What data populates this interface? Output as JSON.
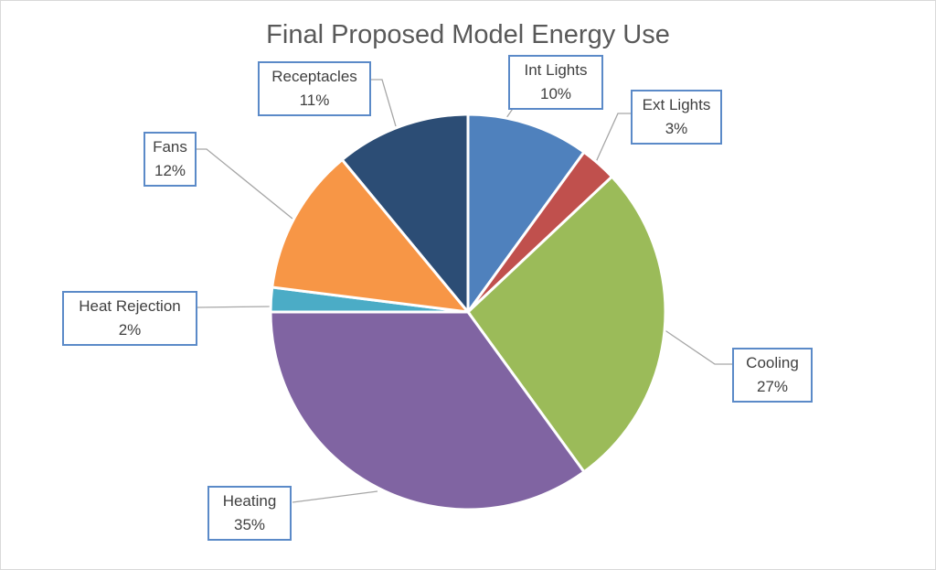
{
  "chart_data": {
    "type": "pie",
    "title": "Final Proposed Model Energy Use",
    "start_angle": "12 o'clock, clockwise",
    "slices": [
      {
        "label": "Int Lights",
        "value": 10,
        "display": "10%",
        "color": "#4f81bd"
      },
      {
        "label": "Ext Lights",
        "value": 3,
        "display": "3%",
        "color": "#c0504d"
      },
      {
        "label": "Cooling",
        "value": 27,
        "display": "27%",
        "color": "#9bbb59"
      },
      {
        "label": "Heating",
        "value": 35,
        "display": "35%",
        "color": "#8064a2"
      },
      {
        "label": "Heat Rejection",
        "value": 2,
        "display": "2%",
        "color": "#4bacc6"
      },
      {
        "label": "Fans",
        "value": 12,
        "display": "12%",
        "color": "#f79646"
      },
      {
        "label": "Receptacles",
        "value": 11,
        "display": "11%",
        "color": "#2c4d75"
      }
    ],
    "legend": "none (callout data labels)"
  }
}
